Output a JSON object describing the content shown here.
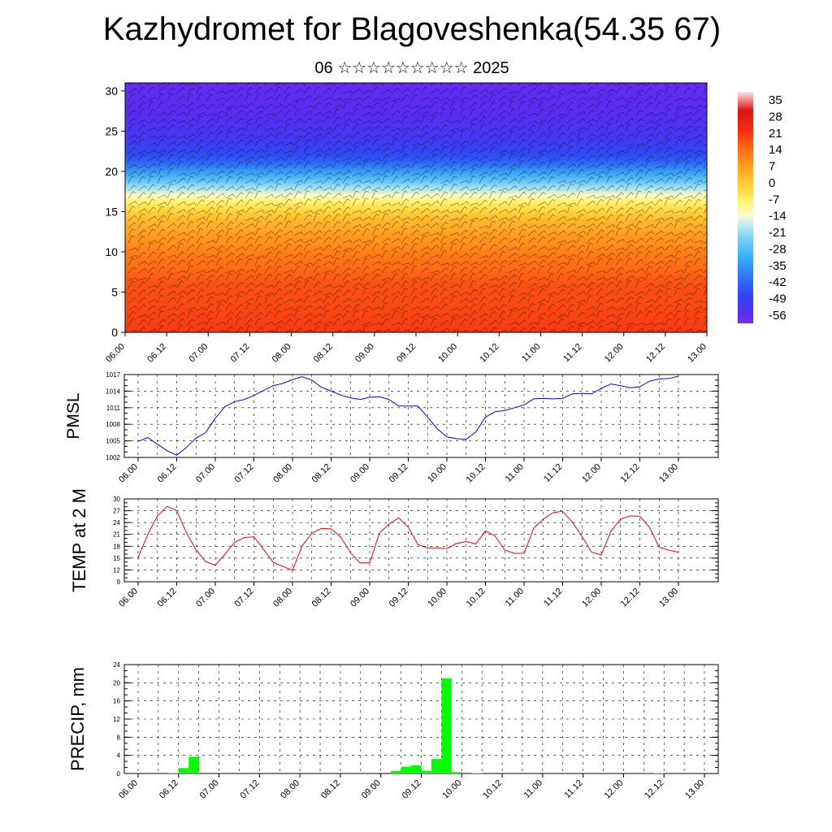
{
  "header": {
    "title": "Kazhydromet for Blagoveshenka(54.35 67)",
    "subtitle": "06 ☆☆☆☆☆☆☆☆☆ 2025"
  },
  "colors": {
    "pmsl_line": "#0000ff",
    "temp_line": "#ff0000",
    "precip_bar": "#00ff00",
    "grid": "#000000"
  },
  "chart_data": [
    {
      "type": "heatmap",
      "title": "",
      "x_tick_labels": [
        "06.00",
        "06.12",
        "07.00",
        "07.12",
        "08.00",
        "08.12",
        "09.00",
        "09.12",
        "10.00",
        "10.12",
        "11.00",
        "11.12",
        "12.00",
        "12.12",
        "13.00"
      ],
      "y_ticks": [
        0,
        5,
        10,
        15,
        20,
        25,
        30
      ],
      "ylim": [
        0,
        31
      ],
      "colorbar_labels": [
        35,
        28,
        21,
        14,
        7,
        0,
        -7,
        -14,
        -21,
        -28,
        -35,
        -42,
        -49,
        -56
      ],
      "colorbar_range": [
        -60,
        38
      ],
      "overlay": "wind barbs",
      "level_temperatures": [
        {
          "level": 0,
          "value": 20
        },
        {
          "level": 2,
          "value": 19
        },
        {
          "level": 4,
          "value": 18
        },
        {
          "level": 6,
          "value": 17
        },
        {
          "level": 8,
          "value": 14
        },
        {
          "level": 10,
          "value": 11
        },
        {
          "level": 12,
          "value": 7
        },
        {
          "level": 14,
          "value": 2
        },
        {
          "level": 15,
          "value": -2
        },
        {
          "level": 16,
          "value": -7
        },
        {
          "level": 17,
          "value": -13
        },
        {
          "level": 18,
          "value": -21
        },
        {
          "level": 19,
          "value": -28
        },
        {
          "level": 20,
          "value": -35
        },
        {
          "level": 21,
          "value": -42
        },
        {
          "level": 22,
          "value": -47
        },
        {
          "level": 24,
          "value": -52
        },
        {
          "level": 27,
          "value": -55
        },
        {
          "level": 31,
          "value": -57
        }
      ]
    },
    {
      "type": "line",
      "ylabel": "PMSL",
      "x_tick_labels": [
        "06.00",
        "06.12",
        "07.00",
        "07.12",
        "08.00",
        "08.12",
        "09.00",
        "09.12",
        "10.00",
        "10.12",
        "11.00",
        "11.12",
        "12.00",
        "12.12",
        "13.00"
      ],
      "y_ticks": [
        1002,
        1005,
        1008,
        1011,
        1014,
        1017
      ],
      "ylim": [
        1002,
        1017
      ],
      "series": [
        {
          "x": [
            0,
            1,
            2,
            3,
            4,
            5,
            6,
            7,
            8,
            9,
            10,
            11,
            12,
            13,
            14,
            15,
            16,
            17,
            18,
            19,
            20,
            21,
            22,
            23,
            24,
            25,
            26,
            27,
            28,
            29,
            30,
            31,
            32,
            33,
            34,
            35,
            36,
            37,
            38,
            39,
            40,
            41,
            42,
            43,
            44,
            45,
            46,
            47,
            48,
            49,
            50,
            51,
            52,
            53,
            54,
            55,
            56
          ],
          "values": [
            1004.9,
            1005.6,
            1004.4,
            1003.2,
            1002.4,
            1003.8,
            1005.5,
            1006.5,
            1009.1,
            1011.2,
            1012.1,
            1012.5,
            1013.2,
            1014.1,
            1015.0,
            1015.4,
            1016.1,
            1016.6,
            1016.0,
            1014.7,
            1014.0,
            1013.3,
            1012.8,
            1012.5,
            1012.9,
            1013.0,
            1012.5,
            1011.3,
            1011.3,
            1011.3,
            1009.3,
            1007.2,
            1005.7,
            1005.4,
            1005.3,
            1006.6,
            1009.3,
            1010.3,
            1010.5,
            1011.0,
            1011.5,
            1012.6,
            1012.7,
            1012.6,
            1012.7,
            1013.5,
            1013.6,
            1013.5,
            1014.5,
            1015.3,
            1015.0,
            1014.6,
            1014.8,
            1015.8,
            1016.2,
            1016.3,
            1016.7
          ]
        }
      ]
    },
    {
      "type": "line",
      "ylabel": "TEMP at 2 M",
      "x_tick_labels": [
        "06.00",
        "06.12",
        "07.00",
        "07.12",
        "08.00",
        "08.12",
        "09.00",
        "09.12",
        "10.00",
        "10.12",
        "11.00",
        "11.12",
        "12.00",
        "12.12",
        "13.00"
      ],
      "y_ticks": [
        9,
        12,
        15,
        18,
        21,
        24,
        27,
        30
      ],
      "ylim": [
        9,
        30
      ],
      "series": [
        {
          "x": [
            0,
            1,
            2,
            3,
            4,
            5,
            6,
            7,
            8,
            9,
            10,
            11,
            12,
            13,
            14,
            15,
            16,
            17,
            18,
            19,
            20,
            21,
            22,
            23,
            24,
            25,
            26,
            27,
            28,
            29,
            30,
            31,
            32,
            33,
            34,
            35,
            36,
            37,
            38,
            39,
            40,
            41,
            42,
            43,
            44,
            45,
            46,
            47,
            48,
            49,
            50,
            51,
            52,
            53,
            54,
            55,
            56
          ],
          "values": [
            15.2,
            21.0,
            25.7,
            28.1,
            27.0,
            21.4,
            17.1,
            14.1,
            13.2,
            16.0,
            19.0,
            20.2,
            20.4,
            17.2,
            13.9,
            12.9,
            11.9,
            18.1,
            21.3,
            22.5,
            22.4,
            20.3,
            16.4,
            13.8,
            13.8,
            21.3,
            23.6,
            25.2,
            22.8,
            18.4,
            17.6,
            17.6,
            17.4,
            18.7,
            19.2,
            18.6,
            21.9,
            20.6,
            17.0,
            16.2,
            16.2,
            22.6,
            24.9,
            26.5,
            26.9,
            24.1,
            20.5,
            16.5,
            15.8,
            21.8,
            24.9,
            25.7,
            25.6,
            22.8,
            17.8,
            17.0,
            16.5
          ]
        }
      ]
    },
    {
      "type": "bar",
      "ylabel": "PRECIP, mm",
      "x_tick_labels": [
        "06.00",
        "06.12",
        "07.00",
        "07.12",
        "08.00",
        "08.12",
        "09.00",
        "09.12",
        "10.00",
        "10.12",
        "11.00",
        "11.12",
        "12.00",
        "12.12",
        "13.00"
      ],
      "y_ticks": [
        0,
        4,
        8,
        12,
        16,
        20,
        24
      ],
      "ylim": [
        0,
        24
      ],
      "series": [
        {
          "x": [
            0,
            1,
            2,
            3,
            4,
            5,
            6,
            7,
            8,
            9,
            10,
            11,
            12,
            13,
            14,
            15,
            16,
            17,
            18,
            19,
            20,
            21,
            22,
            23,
            24,
            25,
            26,
            27,
            28,
            29,
            30,
            31,
            32,
            33,
            34,
            35,
            36,
            37,
            38,
            39,
            40,
            41,
            42,
            43,
            44,
            45,
            46,
            47,
            48,
            49,
            50,
            51,
            52,
            53,
            54,
            55
          ],
          "values": [
            0,
            0,
            0,
            0.1,
            1.2,
            3.7,
            0,
            0,
            0,
            0,
            0,
            0,
            0,
            0,
            0,
            0,
            0,
            0,
            0,
            0,
            0,
            0,
            0,
            0,
            0,
            0.6,
            1.5,
            1.8,
            0.6,
            3.2,
            21.0,
            0.3,
            0,
            0.1,
            0,
            0,
            0,
            0,
            0,
            0,
            0,
            0,
            0,
            0,
            0,
            0,
            0,
            0,
            0,
            0,
            0.2,
            0.1,
            0,
            0,
            0,
            0
          ]
        }
      ]
    }
  ]
}
